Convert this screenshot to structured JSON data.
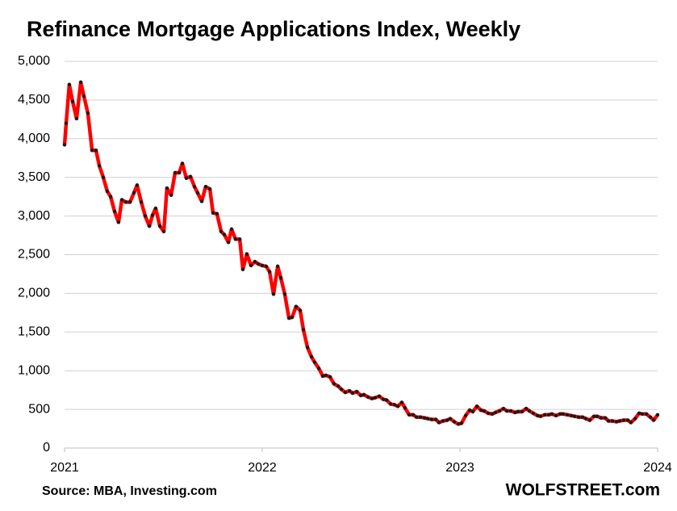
{
  "chart_data": {
    "type": "line",
    "title": "Refinance Mortgage Applications Index, Weekly",
    "source": "Source: MBA, Investing.com",
    "watermark": "WOLFSTREET.com",
    "color": "#ff0000",
    "marker_color": "#1a1a1a",
    "grid": true,
    "xlim": [
      2021,
      2024
    ],
    "xticks": [
      2021,
      2022,
      2023,
      2024
    ],
    "ylim": [
      0,
      5000
    ],
    "yticks": [
      0,
      500,
      {
        "value": 1000,
        "label": "1,000"
      },
      {
        "value": 1500,
        "label": "1,500"
      },
      {
        "value": 2000,
        "label": "2,000"
      },
      {
        "value": 2500,
        "label": "2,500"
      },
      {
        "value": 3000,
        "label": "3,000"
      },
      {
        "value": 3500,
        "label": "3,500"
      },
      {
        "value": 4000,
        "label": "4,000"
      },
      {
        "value": 4500,
        "label": "4,500"
      },
      {
        "value": 5000,
        "label": "5,000"
      }
    ],
    "x": [
      2021.0,
      2021.008,
      2021.024,
      2021.041,
      2021.061,
      2021.082,
      2021.098,
      2021.118,
      2021.139,
      2021.159,
      2021.176,
      2021.196,
      2021.216,
      2021.233,
      2021.253,
      2021.273,
      2021.29,
      2021.31,
      2021.331,
      2021.351,
      2021.367,
      2021.388,
      2021.408,
      2021.429,
      2021.445,
      2021.461,
      2021.482,
      2021.502,
      2021.518,
      2021.539,
      2021.559,
      2021.58,
      2021.596,
      2021.616,
      2021.637,
      2021.657,
      2021.673,
      2021.694,
      2021.714,
      2021.735,
      2021.751,
      2021.771,
      2021.792,
      2021.808,
      2021.829,
      2021.845,
      2021.865,
      2021.886,
      2021.902,
      2021.922,
      2021.943,
      2021.963,
      2021.98,
      2022.0,
      2022.02,
      2022.037,
      2022.057,
      2022.078,
      2022.094,
      2022.114,
      2022.135,
      2022.151,
      2022.171,
      2022.192,
      2022.208,
      2022.229,
      2022.249,
      2022.265,
      2022.286,
      2022.306,
      2022.322,
      2022.343,
      2022.363,
      2022.384,
      2022.4,
      2022.42,
      2022.441,
      2022.457,
      2022.478,
      2022.498,
      2022.514,
      2022.535,
      2022.555,
      2022.571,
      2022.592,
      2022.612,
      2022.629,
      2022.649,
      2022.669,
      2022.686,
      2022.706,
      2022.722,
      2022.743,
      2022.763,
      2022.78,
      2022.8,
      2022.82,
      2022.837,
      2022.857,
      2022.878,
      2022.894,
      2022.914,
      2022.935,
      2022.951,
      2022.971,
      2022.992,
      2023.008,
      2023.029,
      2023.049,
      2023.065,
      2023.086,
      2023.106,
      2023.122,
      2023.143,
      2023.163,
      2023.18,
      2023.2,
      2023.22,
      2023.237,
      2023.257,
      2023.278,
      2023.294,
      2023.314,
      2023.335,
      2023.351,
      2023.371,
      2023.392,
      2023.408,
      2023.429,
      2023.449,
      2023.465,
      2023.486,
      2023.506,
      2023.522,
      2023.543,
      2023.563,
      2023.58,
      2023.6,
      2023.62,
      2023.637,
      2023.657,
      2023.678,
      2023.694,
      2023.714,
      2023.735,
      2023.751,
      2023.771,
      2023.792,
      2023.808,
      2023.829,
      2023.849,
      2023.865,
      2023.886,
      2023.906,
      2023.922,
      2023.943,
      2023.963,
      2023.98,
      2024.0
    ],
    "values": [
      3920,
      4200,
      4700,
      4480,
      4260,
      4730,
      4550,
      4330,
      3850,
      3850,
      3650,
      3500,
      3320,
      3250,
      3060,
      2920,
      3210,
      3180,
      3180,
      3300,
      3400,
      3180,
      3000,
      2870,
      3010,
      3100,
      2870,
      2800,
      3360,
      3270,
      3560,
      3560,
      3680,
      3490,
      3510,
      3380,
      3300,
      3190,
      3380,
      3350,
      3040,
      3030,
      2800,
      2760,
      2660,
      2830,
      2700,
      2700,
      2310,
      2510,
      2360,
      2410,
      2380,
      2360,
      2350,
      2280,
      1990,
      2350,
      2200,
      1990,
      1680,
      1690,
      1830,
      1780,
      1530,
      1300,
      1180,
      1110,
      1030,
      930,
      940,
      920,
      830,
      800,
      760,
      720,
      740,
      710,
      730,
      680,
      690,
      660,
      640,
      650,
      670,
      630,
      620,
      570,
      560,
      540,
      590,
      520,
      430,
      430,
      400,
      400,
      390,
      380,
      370,
      370,
      330,
      350,
      360,
      380,
      340,
      310,
      320,
      420,
      490,
      470,
      540,
      490,
      480,
      450,
      440,
      460,
      480,
      510,
      480,
      480,
      460,
      470,
      470,
      510,
      480,
      450,
      420,
      410,
      430,
      430,
      440,
      420,
      440,
      440,
      430,
      420,
      410,
      400,
      400,
      380,
      360,
      410,
      410,
      390,
      390,
      350,
      350,
      340,
      350,
      360,
      360,
      330,
      380,
      450,
      440,
      440,
      400,
      360,
      430
    ]
  }
}
